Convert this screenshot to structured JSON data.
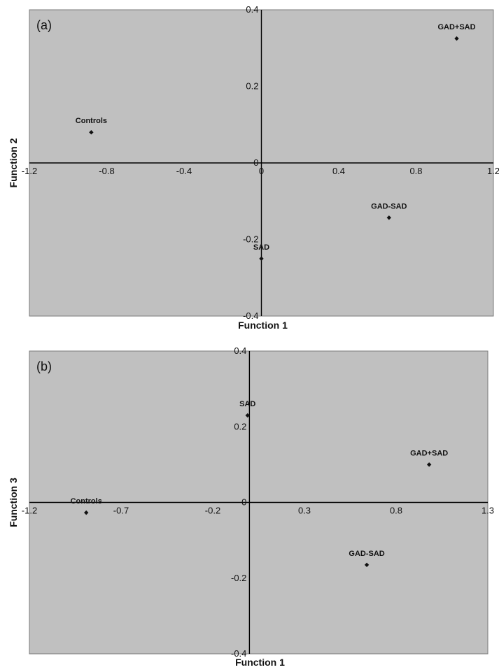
{
  "chart_data": [
    {
      "type": "scatter",
      "panel_label": "(a)",
      "xlabel": "Function 1",
      "ylabel": "Function 2",
      "xlim": [
        -1.2,
        1.2
      ],
      "ylim": [
        -0.4,
        0.4
      ],
      "grid": false,
      "x_ticks": [
        -1.2,
        -0.8,
        -0.4,
        0,
        0.4,
        0.8,
        1.2
      ],
      "x_tick_labels": [
        "-1.2",
        "-0.8",
        "-0.4",
        "0",
        "0.4",
        "0.8",
        "1.2"
      ],
      "y_ticks": [
        0.4,
        0.2,
        0,
        -0.2,
        -0.4
      ],
      "y_tick_labels": [
        "0.4",
        "0.2",
        "0",
        "-0.2",
        "-0.4"
      ],
      "points": [
        {
          "label": "Controls",
          "x": -0.88,
          "y": 0.08
        },
        {
          "label": "GAD+SAD",
          "x": 1.01,
          "y": 0.325
        },
        {
          "label": "GAD-SAD",
          "x": 0.66,
          "y": -0.143
        },
        {
          "label": "SAD",
          "x": 0.0,
          "y": -0.25
        }
      ]
    },
    {
      "type": "scatter",
      "panel_label": "(b)",
      "xlabel": "Function 1",
      "ylabel": "Function 3",
      "xlim": [
        -1.2,
        1.3
      ],
      "ylim": [
        -0.4,
        0.4
      ],
      "grid": false,
      "x_ticks": [
        -1.2,
        -0.7,
        -0.2,
        0.3,
        0.8,
        1.3
      ],
      "x_tick_labels": [
        "-1.2",
        "-0.7",
        "-0.2",
        "0.3",
        "0.8",
        "1.3"
      ],
      "y_ticks": [
        0.4,
        0.2,
        0,
        -0.2,
        -0.4
      ],
      "y_tick_labels": [
        "0.4",
        "0.2",
        "0",
        "-0.2",
        "-0.4"
      ],
      "points": [
        {
          "label": "SAD",
          "x": -0.01,
          "y": 0.23
        },
        {
          "label": "GAD+SAD",
          "x": 0.98,
          "y": 0.1
        },
        {
          "label": "Controls",
          "x": -0.89,
          "y": -0.027
        },
        {
          "label": "GAD-SAD",
          "x": 0.64,
          "y": -0.165
        }
      ]
    }
  ]
}
